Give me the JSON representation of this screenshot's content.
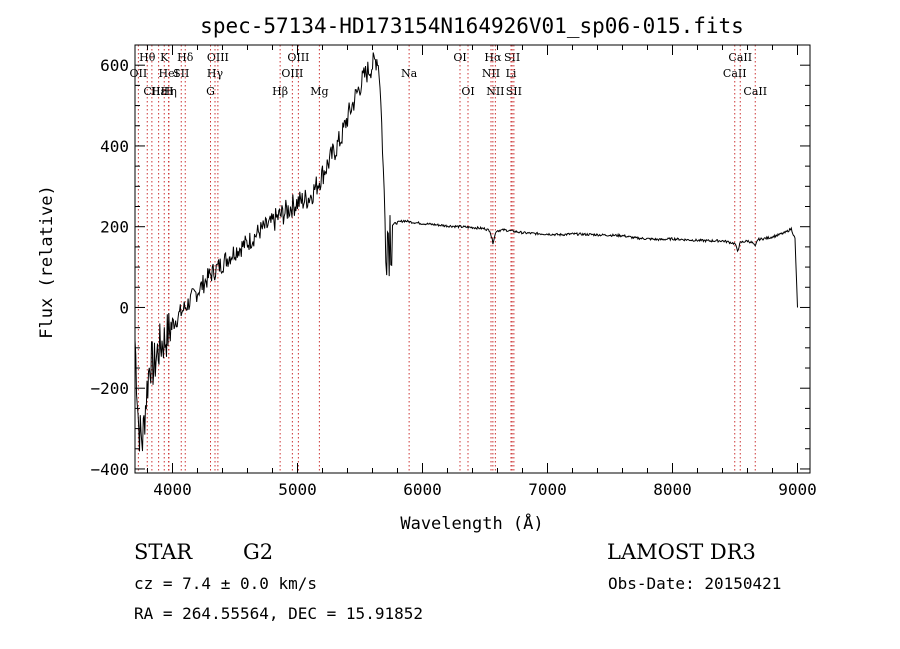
{
  "chart_data": {
    "type": "line",
    "title": "spec-57134-HD173154N164926V01_sp06-015.fits",
    "xlabel": "Wavelength (Å)",
    "ylabel": "Flux (relative)",
    "xlim": [
      3700,
      9100
    ],
    "ylim": [
      -410,
      650
    ],
    "x_ticks": [
      "4000",
      "5000",
      "6000",
      "7000",
      "8000",
      "9000"
    ],
    "x_tick_values": [
      4000,
      5000,
      6000,
      7000,
      8000,
      9000
    ],
    "y_ticks": [
      "−400",
      "−200",
      "0",
      "200",
      "400",
      "600"
    ],
    "y_tick_values": [
      -400,
      -200,
      0,
      200,
      400,
      600
    ],
    "grid": false,
    "line_color": "#000000",
    "marker_color": "#cc3333",
    "spectrum": {
      "x": [
        3700,
        3730,
        3760,
        3790,
        3820,
        3850,
        3880,
        3910,
        3940,
        3970,
        4000,
        4050,
        4100,
        4150,
        4200,
        4250,
        4300,
        4350,
        4400,
        4450,
        4500,
        4550,
        4600,
        4650,
        4700,
        4750,
        4800,
        4850,
        4900,
        4950,
        5000,
        5050,
        5100,
        5150,
        5200,
        5250,
        5300,
        5350,
        5400,
        5450,
        5500,
        5550,
        5600,
        5640,
        5660,
        5680,
        5700,
        5720,
        5740,
        5760,
        5800,
        5850,
        5900,
        5950,
        6000,
        6100,
        6200,
        6300,
        6400,
        6500,
        6540,
        6563,
        6590,
        6650,
        6700,
        6800,
        6900,
        7000,
        7100,
        7200,
        7300,
        7400,
        7500,
        7600,
        7650,
        7700,
        7800,
        7900,
        8000,
        8100,
        8200,
        8300,
        8400,
        8450,
        8500,
        8520,
        8542,
        8560,
        8600,
        8640,
        8662,
        8680,
        8720,
        8760,
        8800,
        8850,
        8900,
        8950,
        8980,
        9000
      ],
      "y": [
        -80,
        -300,
        -330,
        -220,
        -130,
        -150,
        -110,
        -90,
        -80,
        -60,
        -40,
        -20,
        0,
        20,
        40,
        60,
        80,
        95,
        110,
        125,
        140,
        150,
        160,
        175,
        190,
        200,
        210,
        225,
        235,
        250,
        260,
        265,
        275,
        300,
        330,
        360,
        390,
        420,
        470,
        510,
        550,
        580,
        600,
        620,
        560,
        400,
        220,
        190,
        200,
        205,
        210,
        215,
        212,
        210,
        208,
        205,
        202,
        200,
        198,
        195,
        190,
        160,
        190,
        192,
        190,
        185,
        183,
        182,
        180,
        182,
        181,
        180,
        179,
        178,
        175,
        172,
        170,
        168,
        170,
        168,
        166,
        165,
        165,
        162,
        158,
        140,
        160,
        162,
        165,
        160,
        150,
        168,
        170,
        172,
        175,
        180,
        185,
        195,
        170,
        0
      ]
    },
    "lines": [
      {
        "label": "Hθ",
        "x": 3798,
        "row": 0
      },
      {
        "label": "OII",
        "x": 3727,
        "row": 1
      },
      {
        "label": "CII",
        "x": 3835,
        "row": 2
      },
      {
        "label": "Hε",
        "x": 3889,
        "row": 2
      },
      {
        "label": "K",
        "x": 3934,
        "row": 0
      },
      {
        "label": "HeI",
        "x": 3970,
        "row": 1
      },
      {
        "label": "Hη",
        "x": 3970,
        "row": 2
      },
      {
        "label": "SII",
        "x": 4070,
        "row": 1
      },
      {
        "label": "H",
        "x": 3969,
        "row": 2
      },
      {
        "label": "Hδ",
        "x": 4102,
        "row": 0
      },
      {
        "label": "OIII",
        "x": 4363,
        "row": 0
      },
      {
        "label": "Hγ",
        "x": 4340,
        "row": 1
      },
      {
        "label": "G",
        "x": 4304,
        "row": 2
      },
      {
        "label": "Hβ",
        "x": 4861,
        "row": 2
      },
      {
        "label": "OIII",
        "x": 5007,
        "row": 0
      },
      {
        "label": "OIII",
        "x": 4959,
        "row": 1
      },
      {
        "label": "Mg",
        "x": 5175,
        "row": 2
      },
      {
        "label": "Na",
        "x": 5893,
        "row": 1
      },
      {
        "label": "OI",
        "x": 6300,
        "row": 0
      },
      {
        "label": "OI",
        "x": 6364,
        "row": 2
      },
      {
        "label": "Hα",
        "x": 6563,
        "row": 0
      },
      {
        "label": "SII",
        "x": 6717,
        "row": 0
      },
      {
        "label": "NII",
        "x": 6548,
        "row": 1
      },
      {
        "label": "Li",
        "x": 6708,
        "row": 1
      },
      {
        "label": "NII",
        "x": 6583,
        "row": 2
      },
      {
        "label": "SII",
        "x": 6731,
        "row": 2
      },
      {
        "label": "CaII",
        "x": 8542,
        "row": 0
      },
      {
        "label": "CaII",
        "x": 8498,
        "row": 1
      },
      {
        "label": "CaII",
        "x": 8662,
        "row": 2
      }
    ]
  },
  "info": {
    "object_class": "STAR",
    "subclass": "G2",
    "survey": "LAMOST DR3",
    "redshift": "cz = 7.4 ± 0.0 km/s",
    "obs_date": "Obs-Date: 20150421",
    "coords": "RA = 264.55564, DEC =  15.91852"
  }
}
